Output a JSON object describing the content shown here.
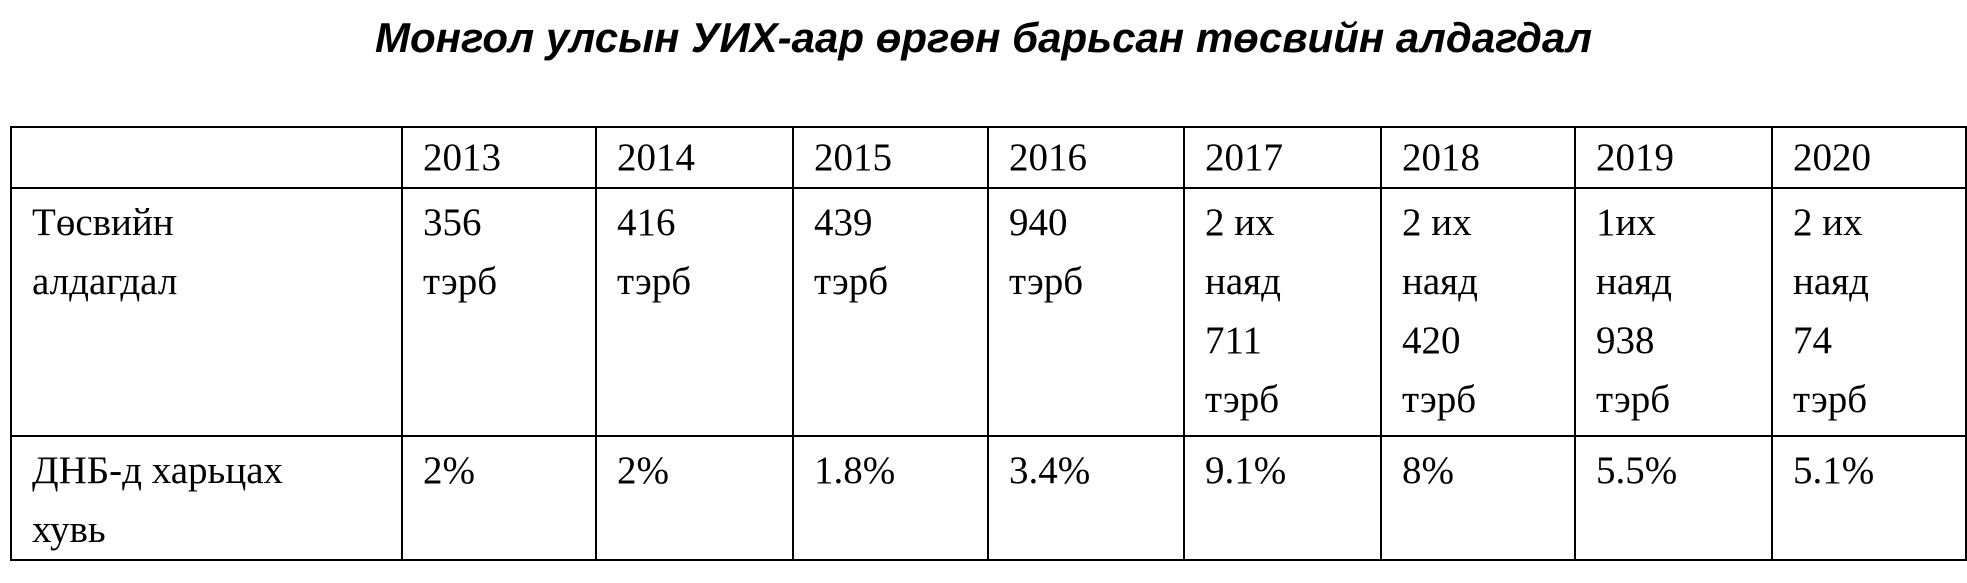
{
  "title": "Монгол улсын УИХ-аар өргөн барьсан төсвийн алдагдал",
  "table": {
    "header": [
      "2013",
      "2014",
      "2015",
      "2016",
      "2017",
      "2018",
      "2019",
      "2020"
    ],
    "rows": [
      {
        "label": [
          "Төсвийн",
          "алдагдал"
        ],
        "cells": [
          [
            "356",
            "тэрб"
          ],
          [
            "416",
            "тэрб"
          ],
          [
            "439",
            "тэрб"
          ],
          [
            "940",
            "тэрб"
          ],
          [
            "2 их",
            "наяд",
            "711",
            "тэрб"
          ],
          [
            "2 их",
            "наяд",
            "420",
            "тэрб"
          ],
          [
            "1их",
            "наяд",
            "938",
            "тэрб"
          ],
          [
            "2 их",
            "наяд",
            "74",
            "тэрб"
          ]
        ]
      },
      {
        "label": [
          "ДНБ-д харьцах",
          "хувь"
        ],
        "cells": [
          [
            "2%"
          ],
          [
            "2%"
          ],
          [
            "1.8%"
          ],
          [
            "3.4%"
          ],
          [
            "9.1%"
          ],
          [
            "8%"
          ],
          [
            "5.5%"
          ],
          [
            "5.1%"
          ]
        ]
      }
    ]
  }
}
